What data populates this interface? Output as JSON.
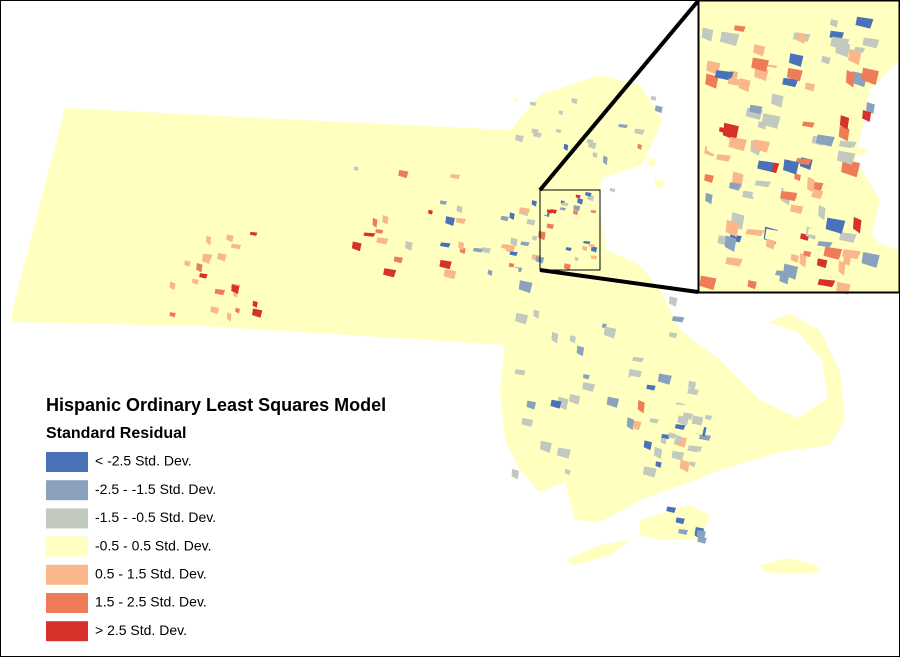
{
  "legend": {
    "title": "Hispanic Ordinary Least Squares Model",
    "subtitle": "Standard Residual",
    "items": [
      {
        "label": "< -2.5 Std. Dev.",
        "color": "#4a72b8"
      },
      {
        "label": "-2.5 - -1.5 Std. Dev.",
        "color": "#8aa2bd"
      },
      {
        "label": "-1.5 - -0.5 Std. Dev.",
        "color": "#c2c9be"
      },
      {
        "label": "-0.5 - 0.5 Std. Dev.",
        "color": "#ffffbf"
      },
      {
        "label": "0.5 - 1.5 Std. Dev.",
        "color": "#f9b78a"
      },
      {
        "label": "1.5 - 2.5 Std. Dev.",
        "color": "#ef7c58"
      },
      {
        "label": "> 2.5 Std. Dev.",
        "color": "#d7312b"
      }
    ]
  }
}
